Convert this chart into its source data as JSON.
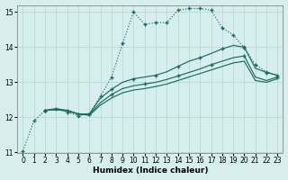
{
  "xlabel": "Humidex (Indice chaleur)",
  "xlim": [
    -0.5,
    23.5
  ],
  "ylim": [
    11,
    15.2
  ],
  "yticks": [
    11,
    12,
    13,
    14,
    15
  ],
  "xticks": [
    0,
    1,
    2,
    3,
    4,
    5,
    6,
    7,
    8,
    9,
    10,
    11,
    12,
    13,
    14,
    15,
    16,
    17,
    18,
    19,
    20,
    21,
    22,
    23
  ],
  "bg_color": "#d6efee",
  "grid_color": "#b8dbd8",
  "line_color1": "#1a6b60",
  "line_color2": "#1a6b60",
  "line1_x": [
    0,
    1,
    2,
    3,
    4,
    5,
    6,
    7,
    8,
    9,
    10,
    11,
    12,
    13,
    14,
    15,
    16,
    17,
    18,
    19,
    20,
    21,
    22,
    23
  ],
  "line1_y": [
    11.05,
    11.9,
    12.2,
    12.25,
    12.15,
    12.05,
    12.1,
    12.6,
    13.15,
    14.1,
    15.0,
    14.65,
    14.7,
    14.7,
    15.05,
    15.1,
    15.1,
    15.05,
    14.55,
    14.35,
    13.98,
    13.5,
    13.3,
    13.2
  ],
  "line2_x": [
    2,
    3,
    4,
    5,
    6,
    7,
    8,
    9,
    10,
    11,
    12,
    13,
    14,
    15,
    16,
    17,
    18,
    19,
    20,
    21,
    22,
    23
  ],
  "line2_y": [
    12.2,
    12.25,
    12.2,
    12.1,
    12.1,
    12.55,
    12.8,
    13.0,
    13.1,
    13.15,
    13.2,
    13.3,
    13.45,
    13.6,
    13.7,
    13.82,
    13.95,
    14.05,
    14.0,
    13.4,
    13.28,
    13.2
  ],
  "line3_x": [
    2,
    3,
    4,
    5,
    6,
    7,
    8,
    9,
    10,
    11,
    12,
    13,
    14,
    15,
    16,
    17,
    18,
    19,
    20,
    21,
    22,
    23
  ],
  "line3_y": [
    12.2,
    12.22,
    12.2,
    12.1,
    12.08,
    12.42,
    12.65,
    12.82,
    12.9,
    12.95,
    13.0,
    13.08,
    13.18,
    13.28,
    13.38,
    13.5,
    13.6,
    13.7,
    13.75,
    13.15,
    13.05,
    13.15
  ],
  "line4_x": [
    2,
    3,
    4,
    5,
    6,
    7,
    8,
    9,
    10,
    11,
    12,
    13,
    14,
    15,
    16,
    17,
    18,
    19,
    20,
    21,
    22,
    23
  ],
  "line4_y": [
    12.2,
    12.22,
    12.18,
    12.1,
    12.06,
    12.35,
    12.55,
    12.7,
    12.78,
    12.82,
    12.88,
    12.95,
    13.05,
    13.15,
    13.25,
    13.35,
    13.45,
    13.55,
    13.6,
    13.05,
    13.0,
    13.1
  ]
}
